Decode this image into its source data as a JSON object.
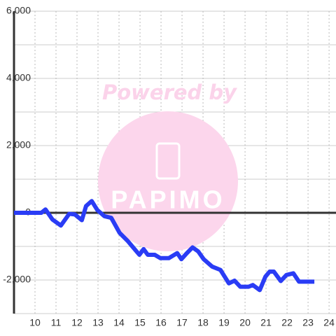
{
  "chart_data": {
    "type": "line",
    "watermark": [
      "Powered by",
      "PAPIMO"
    ],
    "x": [
      9.0,
      10.3,
      10.5,
      10.83,
      11.23,
      11.63,
      11.9,
      12.23,
      12.43,
      12.7,
      12.97,
      13.3,
      13.63,
      14.03,
      14.43,
      14.7,
      14.97,
      15.17,
      15.37,
      15.7,
      15.97,
      16.37,
      16.77,
      16.97,
      17.23,
      17.5,
      17.77,
      18.03,
      18.43,
      18.83,
      19.23,
      19.5,
      19.77,
      20.17,
      20.37,
      20.7,
      20.97,
      21.17,
      21.37,
      21.7,
      21.97,
      22.3,
      22.57,
      23.3
    ],
    "series": [
      {
        "color": "#2a3cf5",
        "values": [
          0,
          0,
          100,
          -200,
          -380,
          -30,
          -50,
          -220,
          200,
          350,
          80,
          -100,
          -150,
          -600,
          -850,
          -1050,
          -1250,
          -1080,
          -1250,
          -1250,
          -1350,
          -1350,
          -1200,
          -1380,
          -1200,
          -1030,
          -1150,
          -1380,
          -1600,
          -1700,
          -2100,
          -2020,
          -2200,
          -2200,
          -2150,
          -2300,
          -1900,
          -1750,
          -1750,
          -2030,
          -1850,
          -1800,
          -2050,
          -2050
        ]
      }
    ],
    "xlim": [
      9,
      24.33
    ],
    "xticks": [
      10,
      11,
      12,
      13,
      14,
      15,
      16,
      17,
      18,
      19,
      20,
      21,
      22,
      23,
      24
    ],
    "ylim": [
      -3000,
      6000
    ],
    "yticks": [
      {
        "value": 6000,
        "label": "6,000"
      },
      {
        "value": 4000,
        "label": "4,000"
      },
      {
        "value": 2000,
        "label": "2,000"
      },
      0,
      {
        "value": -2000,
        "label": "-2,000"
      }
    ],
    "yminor_ticks": [
      5000,
      3000,
      1000,
      -1000,
      -3000
    ],
    "grid": true
  }
}
